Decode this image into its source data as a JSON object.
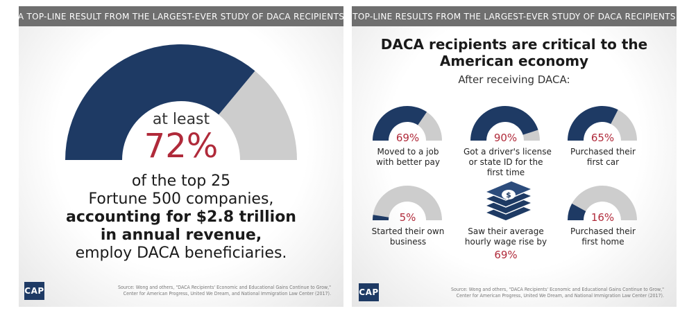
{
  "left_panel": {
    "header": "A TOP-LINE RESULT FROM THE LARGEST-EVER STUDY OF DACA RECIPIENTS",
    "at_least": "at least",
    "percent_label": "72%",
    "lines": {
      "l1": "of the top 25",
      "l2": "Fortune 500 companies,",
      "l3": "accounting for $2.8 trillion",
      "l4": "in annual revenue,",
      "l5": "employ DACA beneficiaries."
    },
    "logo": "CAP",
    "source": {
      "line1": "Source: Wong and others, \"DACA Recipients' Economic and Educational Gains Continue to Grow,\"",
      "line2": "Center for American Progress, United We Dream, and National Immigration Law Center (2017)."
    }
  },
  "right_panel": {
    "header": "TOP-LINE RESULTS FROM THE LARGEST-EVER STUDY OF DACA RECIPIENTS",
    "title_l1": "DACA recipients are critical to the",
    "title_l2": "American economy",
    "subtitle": "After receiving DACA:",
    "items": [
      {
        "pct": "69%",
        "line1": "Moved to a job",
        "line2": "with better pay",
        "line3": ""
      },
      {
        "pct": "90%",
        "line1": "Got a driver's license",
        "line2": "or state ID for the",
        "line3": "first time"
      },
      {
        "pct": "65%",
        "line1": "Purchased their",
        "line2": "first car",
        "line3": ""
      },
      {
        "pct": "5%",
        "line1": "Started their own",
        "line2": "business",
        "line3": ""
      },
      {
        "pct": "",
        "line1": "Saw their average",
        "line2": "hourly wage rise by",
        "line3": "69%"
      },
      {
        "pct": "16%",
        "line1": "Purchased their",
        "line2": "first home",
        "line3": ""
      }
    ],
    "logo": "CAP",
    "source": {
      "line1": "Source: Wong and others, \"DACA Recipients' Economic and Educational Gains Continue to Grow,\"",
      "line2": "Center for American Progress, United We Dream, and National Immigration Law Center (2017)."
    }
  },
  "colors": {
    "navy": "#1e3a64",
    "gray": "#cdcdcd",
    "red": "#b02a3a",
    "header_bg": "#6f6f6f"
  },
  "chart_data": [
    {
      "type": "gauge",
      "values": [
        72
      ],
      "unit": "%"
    },
    {
      "type": "gauge",
      "categories": [
        "Moved to a job with better pay",
        "Got a driver's license or state ID for the first time",
        "Purchased their first car",
        "Started their own business",
        "Purchased their first home"
      ],
      "values": [
        69,
        90,
        65,
        5,
        16
      ],
      "unit": "%"
    }
  ]
}
